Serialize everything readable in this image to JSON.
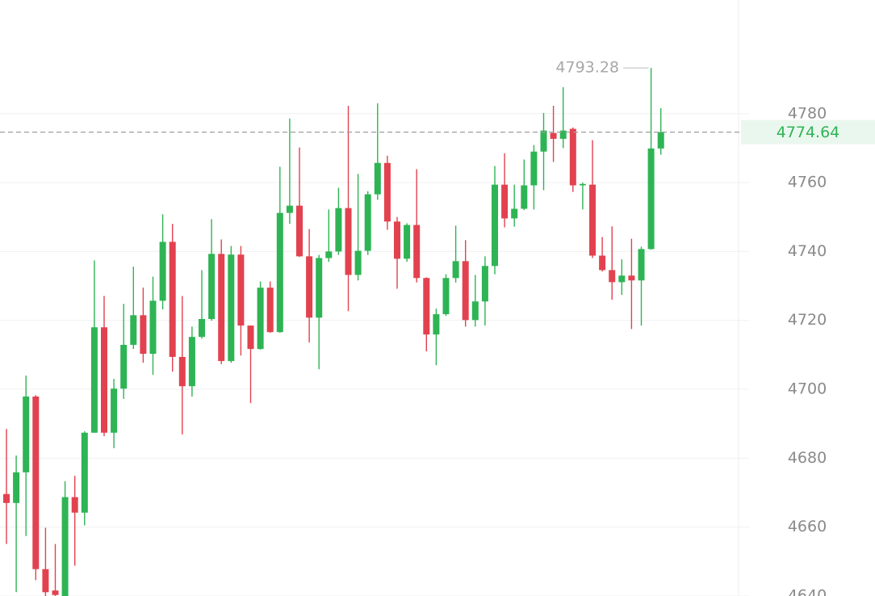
{
  "chart_data": {
    "type": "candlestick",
    "open": [
      4669.6,
      4667.0,
      4675.9,
      4697.9,
      4647.8,
      4641.6,
      4638.0,
      4668.7,
      4664.2,
      4687.4,
      4718.0,
      4687.4,
      4700.2,
      4712.9,
      4721.5,
      4710.3,
      4725.7,
      4742.8,
      4709.4,
      4700.9,
      4715.2,
      4720.4,
      4739.3,
      4708.2,
      4739.1,
      4718.5,
      4711.7,
      4729.5,
      4716.6,
      4751.2,
      4753.3,
      4738.6,
      4720.8,
      4738.1,
      4740.0,
      4752.6,
      4733.2,
      4740.2,
      4756.6,
      4765.7,
      4748.7,
      4737.9,
      4747.7,
      4732.3,
      4715.9,
      4721.8,
      4732.3,
      4737.2,
      4720.1,
      4725.5,
      4735.8,
      4759.4,
      4749.6,
      4752.4,
      4759.2,
      4769.0,
      4774.4,
      4772.7,
      4775.6,
      4759.2,
      4759.4,
      4738.8,
      4734.6,
      4731.1,
      4733.0,
      4731.6,
      4740.7,
      4769.9
    ],
    "high": [
      4688.5,
      4680.8,
      4704.0,
      4698.3,
      4659.8,
      4655.1,
      4673.3,
      4674.9,
      4687.8,
      4737.4,
      4727.1,
      4703.0,
      4724.8,
      4735.6,
      4729.5,
      4732.7,
      4750.8,
      4748.0,
      4727.1,
      4718.2,
      4734.6,
      4749.4,
      4743.5,
      4741.6,
      4741.6,
      4718.5,
      4731.3,
      4731.3,
      4764.6,
      4778.6,
      4770.2,
      4746.5,
      4739.0,
      4752.2,
      4758.5,
      4782.3,
      4762.5,
      4757.5,
      4783.0,
      4767.8,
      4750.0,
      4748.2,
      4763.9,
      4732.5,
      4723.4,
      4733.4,
      4747.5,
      4743.3,
      4733.2,
      4738.6,
      4764.8,
      4768.5,
      4759.4,
      4766.7,
      4770.9,
      4780.2,
      4782.3,
      4787.7,
      4776.0,
      4760.0,
      4772.3,
      4744.2,
      4747.3,
      4737.7,
      4743.7,
      4741.4,
      4793.28,
      4781.6
    ],
    "low": [
      4655.1,
      4641.1,
      4657.4,
      4644.6,
      4639.0,
      4638.0,
      4636.0,
      4648.8,
      4660.5,
      4687.4,
      4686.4,
      4682.9,
      4697.2,
      4711.7,
      4707.7,
      4704.2,
      4723.2,
      4705.1,
      4686.9,
      4697.9,
      4714.7,
      4719.9,
      4707.3,
      4707.7,
      4709.8,
      4696.0,
      4711.5,
      4716.4,
      4716.4,
      4748.0,
      4738.4,
      4713.6,
      4705.8,
      4737.0,
      4739.0,
      4722.7,
      4731.6,
      4739.0,
      4755.0,
      4746.3,
      4729.2,
      4737.0,
      4731.0,
      4711.0,
      4707.0,
      4721.3,
      4731.0,
      4718.2,
      4718.2,
      4718.5,
      4733.4,
      4747.0,
      4747.2,
      4752.0,
      4752.2,
      4757.8,
      4766.0,
      4770.0,
      4757.3,
      4752.2,
      4738.1,
      4734.2,
      4726.0,
      4727.4,
      4717.5,
      4718.5,
      4740.5,
      4768.1
    ],
    "close": [
      4667.0,
      4675.9,
      4697.9,
      4647.8,
      4641.1,
      4640.3,
      4668.7,
      4664.2,
      4687.4,
      4718.0,
      4687.4,
      4700.2,
      4712.9,
      4721.5,
      4710.3,
      4725.7,
      4742.8,
      4709.4,
      4700.9,
      4715.2,
      4720.4,
      4739.3,
      4708.2,
      4739.1,
      4718.5,
      4711.7,
      4729.5,
      4716.6,
      4751.2,
      4753.3,
      4738.6,
      4720.8,
      4738.1,
      4740.0,
      4752.6,
      4733.2,
      4740.2,
      4756.6,
      4765.7,
      4748.7,
      4737.9,
      4747.7,
      4732.3,
      4715.9,
      4721.8,
      4732.3,
      4737.2,
      4720.1,
      4725.5,
      4735.8,
      4759.4,
      4749.6,
      4752.4,
      4759.2,
      4769.0,
      4775.1,
      4772.7,
      4775.1,
      4759.2,
      4759.6,
      4738.8,
      4734.6,
      4731.1,
      4733.0,
      4731.6,
      4740.7,
      4769.9,
      4774.64
    ],
    "up_color": "#2eb454",
    "down_color": "#e2424f",
    "ylim": [
      4640,
      4813
    ],
    "yticks": [
      4640,
      4660,
      4680,
      4700,
      4720,
      4740,
      4760,
      4780
    ],
    "grid": true
  }
}
